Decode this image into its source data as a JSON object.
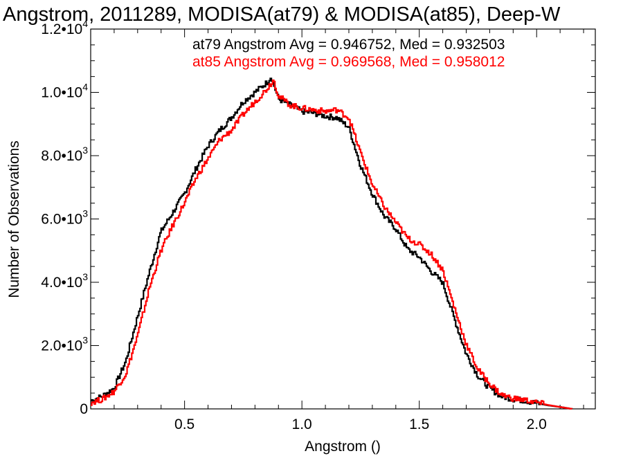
{
  "chart_data": {
    "type": "line",
    "title": "Angstrom, 2011289, MODISA(at79) & MODISA(at85), Deep-W",
    "xlabel": "Angstrom ()",
    "ylabel": "Number of Observations",
    "xlim": [
      0.1,
      2.25
    ],
    "ylim": [
      0,
      12000
    ],
    "x_ticks": [
      {
        "value": 0.5,
        "label": "0.5"
      },
      {
        "value": 1.0,
        "label": "1.0"
      },
      {
        "value": 1.5,
        "label": "1.5"
      },
      {
        "value": 2.0,
        "label": "2.0"
      }
    ],
    "y_ticks": [
      {
        "value": 0,
        "mantissa": "0",
        "exponent": ""
      },
      {
        "value": 2000,
        "mantissa": "2.0•10",
        "exponent": "3"
      },
      {
        "value": 4000,
        "mantissa": "4.0•10",
        "exponent": "3"
      },
      {
        "value": 6000,
        "mantissa": "6.0•10",
        "exponent": "3"
      },
      {
        "value": 8000,
        "mantissa": "8.0•10",
        "exponent": "3"
      },
      {
        "value": 10000,
        "mantissa": "1.0•10",
        "exponent": "4"
      },
      {
        "value": 12000,
        "mantissa": "1.2•10",
        "exponent": "4"
      }
    ],
    "annotations": [
      {
        "text": "at79 Angstrom Avg = 0.946752, Med = 0.932503",
        "color": "#000000"
      },
      {
        "text": "at85 Angstrom Avg = 0.969568, Med = 0.958012",
        "color": "#ff0000"
      }
    ],
    "series": [
      {
        "name": "at79",
        "color": "#000000",
        "x": [
          0.1,
          0.15,
          0.2,
          0.25,
          0.3,
          0.35,
          0.4,
          0.45,
          0.5,
          0.55,
          0.6,
          0.65,
          0.7,
          0.75,
          0.8,
          0.85,
          0.87,
          0.9,
          0.95,
          1.0,
          1.05,
          1.1,
          1.15,
          1.2,
          1.25,
          1.3,
          1.35,
          1.4,
          1.45,
          1.5,
          1.55,
          1.6,
          1.65,
          1.7,
          1.75,
          1.8,
          1.85,
          1.9,
          1.95,
          2.0,
          2.05,
          2.1,
          2.15
        ],
        "y": [
          250,
          400,
          650,
          1500,
          2900,
          4300,
          5600,
          6200,
          6800,
          7600,
          8300,
          8800,
          9200,
          9700,
          10000,
          10300,
          10500,
          9800,
          9600,
          9400,
          9350,
          9250,
          9200,
          8900,
          7700,
          6800,
          6100,
          5700,
          5050,
          4800,
          4350,
          4000,
          2850,
          1750,
          1050,
          650,
          400,
          310,
          260,
          180,
          110,
          60,
          0
        ]
      },
      {
        "name": "at85",
        "color": "#ff0000",
        "x": [
          0.1,
          0.15,
          0.2,
          0.25,
          0.3,
          0.35,
          0.4,
          0.45,
          0.5,
          0.55,
          0.6,
          0.65,
          0.7,
          0.75,
          0.8,
          0.85,
          0.88,
          0.9,
          0.95,
          1.0,
          1.05,
          1.1,
          1.15,
          1.2,
          1.25,
          1.3,
          1.35,
          1.4,
          1.45,
          1.5,
          1.55,
          1.6,
          1.65,
          1.7,
          1.75,
          1.8,
          1.85,
          1.9,
          1.95,
          2.0,
          2.05,
          2.1,
          2.15
        ],
        "y": [
          200,
          300,
          550,
          1100,
          2300,
          3800,
          5000,
          5800,
          6500,
          7300,
          7900,
          8500,
          8800,
          9300,
          9700,
          10100,
          10400,
          9900,
          9600,
          9500,
          9450,
          9400,
          9450,
          9200,
          8100,
          7100,
          6400,
          5900,
          5400,
          5200,
          4900,
          4400,
          3200,
          2050,
          1250,
          800,
          450,
          330,
          280,
          200,
          120,
          60,
          0
        ]
      }
    ]
  }
}
